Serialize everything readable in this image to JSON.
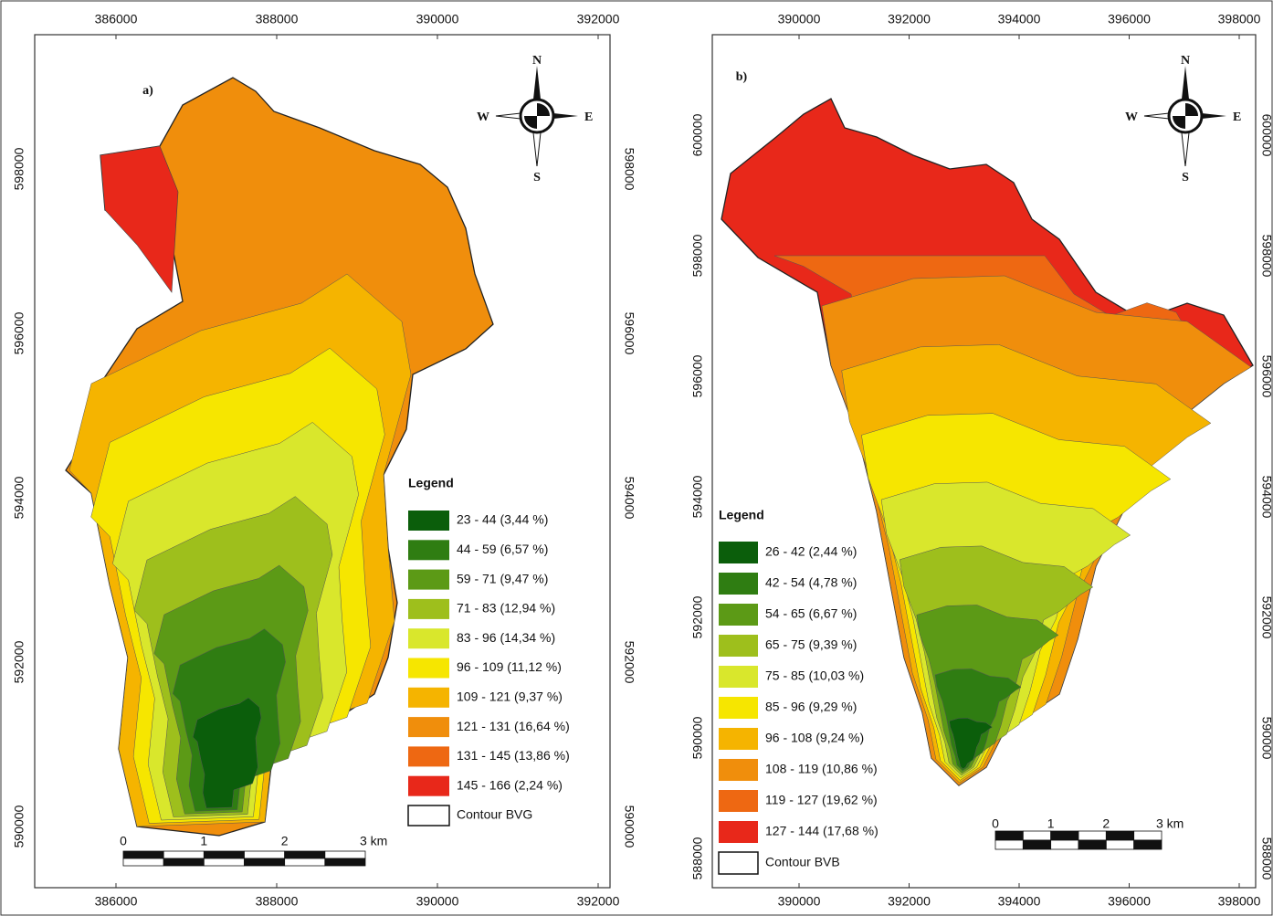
{
  "panels": [
    {
      "label": "a)",
      "x_ticks": [
        386000,
        388000,
        390000,
        392000
      ],
      "y_ticks": [
        590000,
        592000,
        594000,
        596000,
        598000
      ],
      "compass": {
        "n": "N",
        "s": "S",
        "e": "E",
        "w": "W"
      },
      "legend": {
        "title": "Legend",
        "items": [
          {
            "label": "23 - 44 (3,44 %)",
            "color": "#0b5e0b"
          },
          {
            "label": "44 - 59 (6,57 %)",
            "color": "#2f7d12"
          },
          {
            "label": "59 - 71 (9,47 %)",
            "color": "#5c9a16"
          },
          {
            "label": "71 - 83 (12,94 %)",
            "color": "#9ebf1c"
          },
          {
            "label": "83 - 96 (14,34 %)",
            "color": "#d9e72c"
          },
          {
            "label": "96 - 109 (11,12 %)",
            "color": "#f6e600"
          },
          {
            "label": "109 - 121 (9,37 %)",
            "color": "#f5b400"
          },
          {
            "label": "121 - 131 (16,64 %)",
            "color": "#f08e0c"
          },
          {
            "label": "131 - 145 (13,86 %)",
            "color": "#ee6812"
          },
          {
            "label": "145 - 166 (2,24 %)",
            "color": "#e8281a"
          }
        ],
        "boundary": "Contour BVG"
      },
      "scale": [
        "0",
        "1",
        "2",
        "3 km"
      ]
    },
    {
      "label": "b)",
      "x_ticks": [
        390000,
        392000,
        394000,
        396000,
        398000
      ],
      "y_ticks": [
        588000,
        590000,
        592000,
        594000,
        596000,
        598000,
        600000
      ],
      "compass": {
        "n": "N",
        "s": "S",
        "e": "E",
        "w": "W"
      },
      "legend": {
        "title": "Legend",
        "items": [
          {
            "label": "26 - 42 (2,44 %)",
            "color": "#0b5e0b"
          },
          {
            "label": "42 - 54 (4,78 %)",
            "color": "#2f7d12"
          },
          {
            "label": "54 - 65 (6,67 %)",
            "color": "#5c9a16"
          },
          {
            "label": "65 - 75 (9,39 %)",
            "color": "#9ebf1c"
          },
          {
            "label": "75 - 85 (10,03 %)",
            "color": "#d9e72c"
          },
          {
            "label": "85 - 96 (9,29 %)",
            "color": "#f6e600"
          },
          {
            "label": "96 - 108 (9,24 %)",
            "color": "#f5b400"
          },
          {
            "label": "108 - 119 (10,86 %)",
            "color": "#f08e0c"
          },
          {
            "label": "119 - 127 (19,62 %)",
            "color": "#ee6812"
          },
          {
            "label": "127 - 144 (17,68 %)",
            "color": "#e8281a"
          }
        ],
        "boundary": "Contour BVB"
      },
      "scale": [
        "0",
        "1",
        "2",
        "3 km"
      ]
    }
  ]
}
